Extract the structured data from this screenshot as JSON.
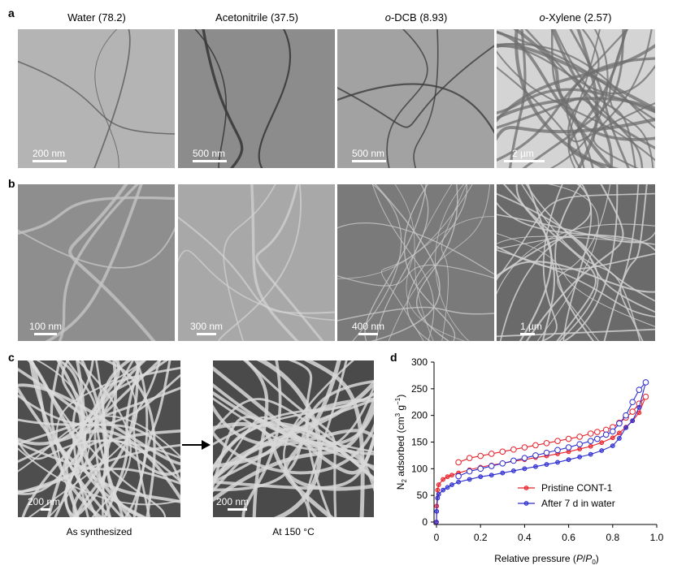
{
  "panels": {
    "a": {
      "label": "a",
      "images": [
        {
          "title": "Water (78.2)",
          "scale_bar": "200 nm"
        },
        {
          "title": "Acetonitrile (37.5)",
          "scale_bar": "500 nm"
        },
        {
          "title_prefix": "o",
          "title": "-DCB (8.93)",
          "scale_bar": "500 nm"
        },
        {
          "title_prefix": "o",
          "title": "-Xylene (2.57)",
          "scale_bar": "2 µm"
        }
      ]
    },
    "b": {
      "label": "b",
      "images": [
        {
          "scale_bar": "100 nm"
        },
        {
          "scale_bar": "300 nm"
        },
        {
          "scale_bar": "400 nm"
        },
        {
          "scale_bar": "1 µm"
        }
      ]
    },
    "c": {
      "label": "c",
      "images": [
        {
          "caption": "As synthesized",
          "scale_bar": "200 nm"
        },
        {
          "caption": "At 150 °C",
          "scale_bar": "200 nm"
        }
      ],
      "arrow_icon": "right-arrow-icon"
    },
    "d": {
      "label": "d"
    }
  },
  "chart_data": {
    "type": "line",
    "xlabel": "Relative pressure (P/P0)",
    "ylabel": "N2 adsorbed (cm3 g-1)",
    "xlim": [
      0,
      1.0
    ],
    "ylim": [
      0,
      300
    ],
    "xticks": [
      "0",
      "0.2",
      "0.4",
      "0.6",
      "0.8",
      "1.0"
    ],
    "yticks": [
      "0",
      "50",
      "100",
      "150",
      "200",
      "250",
      "300"
    ],
    "legend_position": "center-right",
    "series": [
      {
        "name": "Pristine CONT-1",
        "color": "#e8202a",
        "adsorption": [
          [
            0,
            0
          ],
          [
            0.001,
            30
          ],
          [
            0.005,
            60
          ],
          [
            0.01,
            70
          ],
          [
            0.03,
            80
          ],
          [
            0.05,
            85
          ],
          [
            0.07,
            88
          ],
          [
            0.1,
            92
          ],
          [
            0.15,
            98
          ],
          [
            0.2,
            103
          ],
          [
            0.25,
            107
          ],
          [
            0.3,
            110
          ],
          [
            0.35,
            114
          ],
          [
            0.4,
            117
          ],
          [
            0.45,
            121
          ],
          [
            0.5,
            124
          ],
          [
            0.55,
            128
          ],
          [
            0.6,
            132
          ],
          [
            0.65,
            137
          ],
          [
            0.7,
            142
          ],
          [
            0.75,
            149
          ],
          [
            0.8,
            158
          ],
          [
            0.83,
            167
          ],
          [
            0.86,
            178
          ],
          [
            0.89,
            190
          ],
          [
            0.92,
            205
          ],
          [
            0.95,
            235
          ]
        ],
        "desorption": [
          [
            0.95,
            235
          ],
          [
            0.92,
            222
          ],
          [
            0.89,
            207
          ],
          [
            0.86,
            196
          ],
          [
            0.83,
            186
          ],
          [
            0.8,
            178
          ],
          [
            0.77,
            173
          ],
          [
            0.73,
            169
          ],
          [
            0.7,
            166
          ],
          [
            0.65,
            160
          ],
          [
            0.6,
            156
          ],
          [
            0.55,
            152
          ],
          [
            0.5,
            148
          ],
          [
            0.45,
            144
          ],
          [
            0.4,
            140
          ],
          [
            0.35,
            136
          ],
          [
            0.3,
            132
          ],
          [
            0.25,
            128
          ],
          [
            0.2,
            124
          ],
          [
            0.15,
            120
          ],
          [
            0.1,
            112
          ]
        ]
      },
      {
        "name": "After 7 d in water",
        "color": "#2b2bd0",
        "adsorption": [
          [
            0,
            0
          ],
          [
            0.001,
            20
          ],
          [
            0.005,
            45
          ],
          [
            0.01,
            52
          ],
          [
            0.03,
            60
          ],
          [
            0.05,
            65
          ],
          [
            0.07,
            70
          ],
          [
            0.1,
            75
          ],
          [
            0.15,
            80
          ],
          [
            0.2,
            85
          ],
          [
            0.25,
            88
          ],
          [
            0.3,
            92
          ],
          [
            0.35,
            96
          ],
          [
            0.4,
            100
          ],
          [
            0.45,
            104
          ],
          [
            0.5,
            108
          ],
          [
            0.55,
            112
          ],
          [
            0.6,
            117
          ],
          [
            0.65,
            122
          ],
          [
            0.7,
            127
          ],
          [
            0.75,
            134
          ],
          [
            0.8,
            143
          ],
          [
            0.83,
            157
          ],
          [
            0.86,
            177
          ],
          [
            0.89,
            190
          ],
          [
            0.92,
            215
          ],
          [
            0.95,
            262
          ]
        ],
        "desorption": [
          [
            0.95,
            262
          ],
          [
            0.92,
            248
          ],
          [
            0.89,
            225
          ],
          [
            0.86,
            200
          ],
          [
            0.83,
            185
          ],
          [
            0.8,
            170
          ],
          [
            0.77,
            164
          ],
          [
            0.73,
            156
          ],
          [
            0.7,
            152
          ],
          [
            0.65,
            146
          ],
          [
            0.6,
            140
          ],
          [
            0.55,
            135
          ],
          [
            0.5,
            130
          ],
          [
            0.45,
            125
          ],
          [
            0.4,
            120
          ],
          [
            0.35,
            115
          ],
          [
            0.3,
            110
          ],
          [
            0.25,
            105
          ],
          [
            0.2,
            100
          ],
          [
            0.15,
            95
          ],
          [
            0.1,
            86
          ]
        ]
      }
    ]
  }
}
